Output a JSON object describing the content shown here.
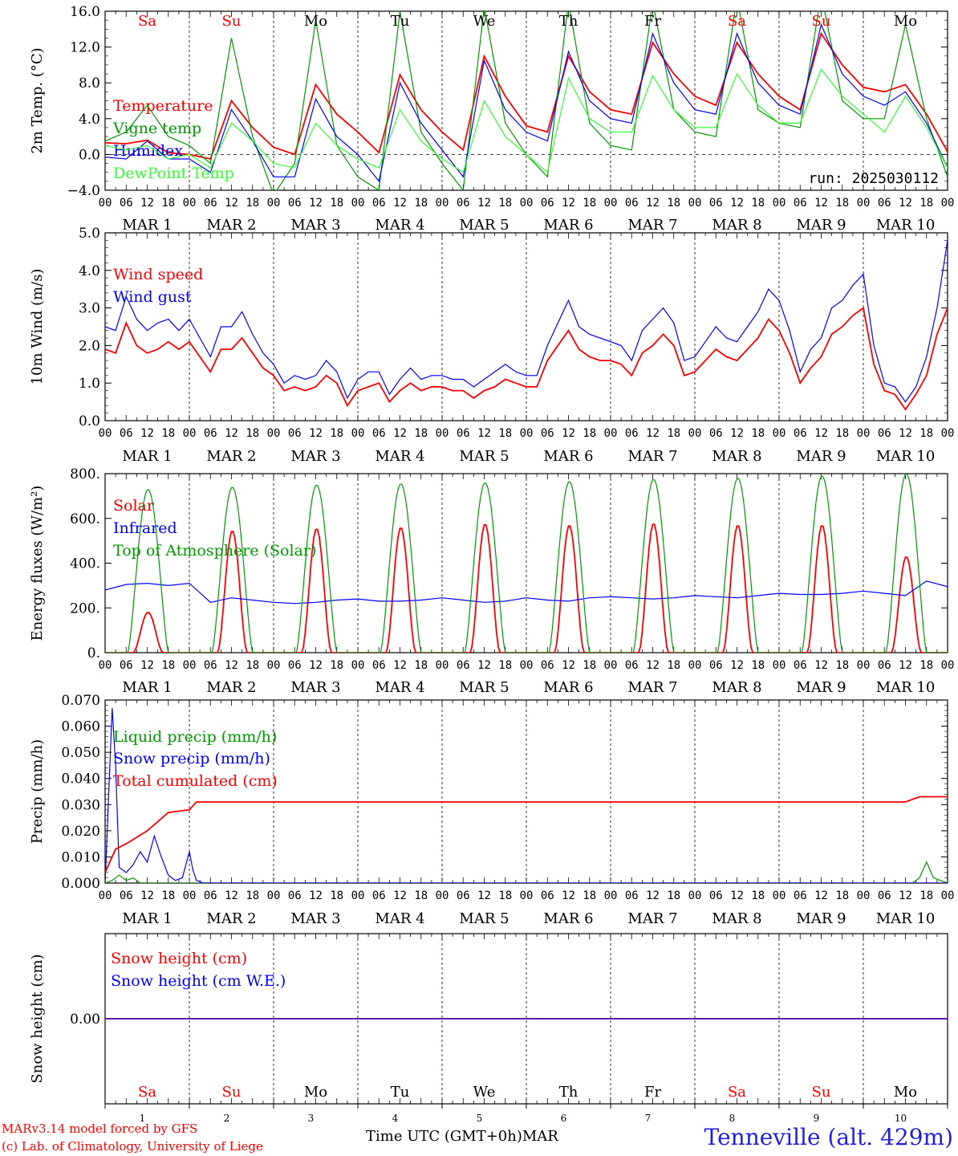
{
  "days": [
    "Sa",
    "Su",
    "Mo",
    "Tu",
    "We",
    "Th",
    "Fr",
    "Sa",
    "Su",
    "Mo"
  ],
  "weekend_flags": [
    true,
    true,
    false,
    false,
    false,
    false,
    false,
    true,
    true,
    false
  ],
  "hour_labels": [
    "00",
    "06",
    "12",
    "18"
  ],
  "month_labels": [
    "MAR  1",
    "MAR  2",
    "MAR  3",
    "MAR  4",
    "MAR  5",
    "MAR  6",
    "MAR  7",
    "MAR  8",
    "MAR  9",
    "MAR 10"
  ],
  "day_numbers": [
    "1",
    "2",
    "3",
    "4",
    "5",
    "6",
    "7",
    "8",
    "9",
    "10"
  ],
  "colors": {
    "red": "#ff0000",
    "green": "#009900",
    "blue": "#0000ff",
    "light_green": "#33ff33",
    "weekend": "#ff0000",
    "weekday": "#000000"
  },
  "footer": {
    "credit1": "MARv3.14 model forced by GFS",
    "credit2": "(c) Lab. of Climatology, University of Liege",
    "xtitle": "Time UTC (GMT+0h)MAR",
    "station": "Tenneville (alt. 429m)"
  },
  "chart_data": [
    {
      "type": "line",
      "ylabel": "2m Temp. (°C)",
      "ylim": [
        -4,
        16
      ],
      "yticks": [
        "16.0",
        "12.0",
        "8.0",
        "4.0",
        "0.0",
        "−4.0"
      ],
      "ytick_values": [
        16,
        12,
        8,
        4,
        0,
        -4
      ],
      "annotation": "run: 2025030112",
      "zero_line": true,
      "x_unit": "hours since MAR 1 00 UTC",
      "series": [
        {
          "name": "Temperature",
          "color": "red",
          "x": [
            0,
            6,
            12,
            18,
            24,
            30,
            36,
            42,
            48,
            54,
            60,
            66,
            72,
            78,
            84,
            90,
            96,
            102,
            108,
            114,
            120,
            126,
            132,
            138,
            144,
            150,
            156,
            162,
            168,
            174,
            180,
            186,
            192,
            198,
            204,
            210,
            216,
            222,
            228,
            234,
            240
          ],
          "y": [
            1.3,
            1.2,
            1.6,
            0.2,
            0.0,
            -0.5,
            6.0,
            3.0,
            0.8,
            0.0,
            7.8,
            4.5,
            2.5,
            0.2,
            8.9,
            5.0,
            2.5,
            0.5,
            11.0,
            6.5,
            3.2,
            2.5,
            11.0,
            7.0,
            5.0,
            4.5,
            12.5,
            9.0,
            6.5,
            5.5,
            12.5,
            9.0,
            6.5,
            5.0,
            13.5,
            10.0,
            7.5,
            7.0,
            7.8,
            4.5,
            0.3
          ]
        },
        {
          "name": "Vigne temp",
          "color": "green",
          "x": [
            0,
            6,
            12,
            18,
            24,
            30,
            36,
            42,
            48,
            54,
            60,
            66,
            72,
            78,
            84,
            90,
            96,
            102,
            108,
            114,
            120,
            126,
            132,
            138,
            144,
            150,
            156,
            162,
            168,
            174,
            180,
            186,
            192,
            198,
            204,
            210,
            216,
            222,
            228,
            234,
            240
          ],
          "y": [
            1.5,
            2.5,
            5.5,
            2.0,
            1.0,
            -1.0,
            13.0,
            2.0,
            -4.5,
            -1.0,
            15.0,
            1.0,
            -2.5,
            -4.0,
            16.0,
            2.5,
            -1.0,
            -4.0,
            16.5,
            3.5,
            0.0,
            -2.5,
            17.0,
            3.5,
            1.0,
            0.5,
            17.0,
            5.0,
            2.5,
            2.0,
            17.5,
            5.0,
            3.5,
            3.0,
            18.0,
            6.0,
            4.0,
            4.0,
            14.5,
            4.0,
            -2.5
          ]
        },
        {
          "name": "Humidex",
          "color": "blue",
          "x": [
            0,
            6,
            12,
            18,
            24,
            30,
            36,
            42,
            48,
            54,
            60,
            66,
            72,
            78,
            84,
            90,
            96,
            102,
            108,
            114,
            120,
            126,
            132,
            138,
            144,
            150,
            156,
            162,
            168,
            174,
            180,
            186,
            192,
            198,
            204,
            210,
            216,
            222,
            228,
            234,
            240
          ],
          "y": [
            -0.3,
            -0.5,
            1.5,
            -0.5,
            -0.5,
            -2.0,
            5.0,
            1.5,
            -2.5,
            -2.5,
            6.2,
            2.0,
            0.0,
            -3.0,
            8.0,
            3.5,
            0.5,
            -2.5,
            10.5,
            5.0,
            2.5,
            1.5,
            11.5,
            6.0,
            4.0,
            3.5,
            13.5,
            8.0,
            5.0,
            4.5,
            13.5,
            8.0,
            5.5,
            4.5,
            14.5,
            9.0,
            6.5,
            5.5,
            7.0,
            3.5,
            -1.5
          ]
        },
        {
          "name": "DewPoint Temp",
          "color": "light_green",
          "x": [
            0,
            6,
            12,
            18,
            24,
            30,
            36,
            42,
            48,
            54,
            60,
            66,
            72,
            78,
            84,
            90,
            96,
            102,
            108,
            114,
            120,
            126,
            132,
            138,
            144,
            150,
            156,
            162,
            168,
            174,
            180,
            186,
            192,
            198,
            204,
            210,
            216,
            222,
            228,
            234,
            240
          ],
          "y": [
            1.0,
            0.5,
            1.0,
            -0.5,
            0.0,
            -1.5,
            3.5,
            1.5,
            -1.0,
            -1.5,
            3.5,
            1.0,
            -0.5,
            -1.5,
            5.0,
            1.5,
            -0.5,
            -2.0,
            6.0,
            2.0,
            0.0,
            -2.0,
            8.5,
            4.0,
            2.5,
            2.5,
            8.8,
            5.0,
            3.0,
            3.0,
            9.0,
            5.5,
            3.5,
            3.5,
            9.5,
            6.5,
            4.5,
            2.5,
            6.5,
            3.0,
            -1.5
          ]
        }
      ]
    },
    {
      "type": "line",
      "ylabel": "10m Wind (m/s)",
      "ylim": [
        0,
        5
      ],
      "yticks": [
        "5.0",
        "4.0",
        "3.0",
        "2.0",
        "1.0",
        "0.0"
      ],
      "ytick_values": [
        5,
        4,
        3,
        2,
        1,
        0
      ],
      "x_unit": "hours since MAR 1 00 UTC",
      "series": [
        {
          "name": "Wind speed",
          "color": "red",
          "x": [
            0,
            3,
            6,
            9,
            12,
            15,
            18,
            21,
            24,
            27,
            30,
            33,
            36,
            39,
            42,
            45,
            48,
            51,
            54,
            57,
            60,
            63,
            66,
            69,
            72,
            75,
            78,
            81,
            84,
            87,
            90,
            93,
            96,
            99,
            102,
            105,
            108,
            111,
            114,
            117,
            120,
            123,
            126,
            129,
            132,
            135,
            138,
            141,
            144,
            147,
            150,
            153,
            156,
            159,
            162,
            165,
            168,
            171,
            174,
            177,
            180,
            183,
            186,
            189,
            192,
            195,
            198,
            201,
            204,
            207,
            210,
            213,
            216,
            219,
            222,
            225,
            228,
            231,
            234,
            237,
            240
          ],
          "y": [
            1.9,
            1.8,
            2.6,
            2.0,
            1.8,
            1.9,
            2.1,
            1.9,
            2.1,
            1.7,
            1.3,
            1.9,
            1.9,
            2.2,
            1.8,
            1.4,
            1.2,
            0.8,
            0.9,
            0.8,
            0.9,
            1.2,
            1.0,
            0.4,
            0.8,
            0.9,
            1.0,
            0.5,
            0.8,
            1.0,
            0.8,
            0.9,
            0.9,
            0.8,
            0.8,
            0.6,
            0.8,
            0.9,
            1.1,
            1.0,
            0.9,
            0.9,
            1.6,
            2.0,
            2.4,
            1.9,
            1.7,
            1.6,
            1.6,
            1.5,
            1.2,
            1.8,
            2.0,
            2.3,
            2.0,
            1.2,
            1.3,
            1.6,
            1.9,
            1.7,
            1.6,
            1.9,
            2.2,
            2.7,
            2.4,
            1.8,
            1.0,
            1.4,
            1.7,
            2.3,
            2.5,
            2.8,
            3.0,
            1.5,
            0.8,
            0.7,
            0.3,
            0.7,
            1.2,
            2.3,
            3.0
          ]
        },
        {
          "name": "Wind gust",
          "color": "blue",
          "x": [
            0,
            3,
            6,
            9,
            12,
            15,
            18,
            21,
            24,
            27,
            30,
            33,
            36,
            39,
            42,
            45,
            48,
            51,
            54,
            57,
            60,
            63,
            66,
            69,
            72,
            75,
            78,
            81,
            84,
            87,
            90,
            93,
            96,
            99,
            102,
            105,
            108,
            111,
            114,
            117,
            120,
            123,
            126,
            129,
            132,
            135,
            138,
            141,
            144,
            147,
            150,
            153,
            156,
            159,
            162,
            165,
            168,
            171,
            174,
            177,
            180,
            183,
            186,
            189,
            192,
            195,
            198,
            201,
            204,
            207,
            210,
            213,
            216,
            219,
            222,
            225,
            228,
            231,
            234,
            237,
            240
          ],
          "y": [
            2.5,
            2.4,
            3.3,
            2.7,
            2.4,
            2.6,
            2.7,
            2.4,
            2.7,
            2.2,
            1.7,
            2.5,
            2.5,
            2.9,
            2.3,
            1.8,
            1.5,
            1.0,
            1.2,
            1.1,
            1.2,
            1.6,
            1.3,
            0.6,
            1.1,
            1.3,
            1.3,
            0.7,
            1.1,
            1.4,
            1.1,
            1.2,
            1.2,
            1.1,
            1.1,
            0.9,
            1.1,
            1.3,
            1.5,
            1.3,
            1.2,
            1.2,
            2.0,
            2.6,
            3.2,
            2.5,
            2.3,
            2.2,
            2.1,
            2.0,
            1.6,
            2.4,
            2.7,
            3.0,
            2.6,
            1.6,
            1.7,
            2.1,
            2.5,
            2.2,
            2.1,
            2.5,
            2.9,
            3.5,
            3.2,
            2.4,
            1.3,
            1.9,
            2.2,
            3.0,
            3.2,
            3.6,
            3.9,
            2.0,
            1.0,
            0.9,
            0.5,
            0.9,
            1.7,
            3.0,
            4.8
          ]
        }
      ]
    },
    {
      "type": "line",
      "ylabel": "Energy fluxes (W/m²)",
      "ylim": [
        0,
        800
      ],
      "yticks": [
        "800.",
        "600.",
        "400.",
        "200.",
        "0."
      ],
      "ytick_values": [
        800,
        600,
        400,
        200,
        0
      ],
      "x_unit": "hours since MAR 1 00 UTC",
      "series": [
        {
          "name": "Solar",
          "color": "red",
          "day_peaks": [
            180,
            545,
            555,
            560,
            575,
            570,
            578,
            570,
            570,
            430
          ]
        },
        {
          "name": "Infrared",
          "color": "blue",
          "x": [
            0,
            6,
            12,
            18,
            24,
            30,
            36,
            42,
            48,
            54,
            60,
            66,
            72,
            78,
            84,
            90,
            96,
            102,
            108,
            114,
            120,
            126,
            132,
            138,
            144,
            150,
            156,
            162,
            168,
            174,
            180,
            186,
            192,
            198,
            204,
            210,
            216,
            222,
            228,
            234,
            240
          ],
          "y": [
            280,
            305,
            310,
            300,
            310,
            225,
            245,
            235,
            225,
            220,
            225,
            235,
            240,
            230,
            230,
            235,
            245,
            235,
            225,
            230,
            245,
            235,
            230,
            245,
            250,
            245,
            240,
            245,
            255,
            250,
            245,
            255,
            265,
            260,
            260,
            265,
            275,
            265,
            255,
            320,
            295
          ]
        },
        {
          "name": "Top of Atmosphere (Solar)",
          "color": "green",
          "day_peaks": [
            730,
            740,
            750,
            755,
            760,
            765,
            775,
            780,
            790,
            800
          ]
        }
      ]
    },
    {
      "type": "line",
      "ylabel": "Precip (mm/h)",
      "ylim": [
        0,
        0.07
      ],
      "yticks": [
        "0.070",
        "0.060",
        "0.050",
        "0.040",
        "0.030",
        "0.020",
        "0.010",
        "0.000"
      ],
      "ytick_values": [
        0.07,
        0.06,
        0.05,
        0.04,
        0.03,
        0.02,
        0.01,
        0
      ],
      "x_unit": "hours since MAR 1 00 UTC",
      "series": [
        {
          "name": "Liquid precip (mm/h)",
          "color": "green",
          "x": [
            0,
            2,
            4,
            6,
            8,
            10,
            230,
            232,
            234,
            236,
            240
          ],
          "y": [
            0,
            0.001,
            0.003,
            0.001,
            0.002,
            0,
            0,
            0.002,
            0.008,
            0.002,
            0
          ]
        },
        {
          "name": "Snow precip (mm/h)",
          "color": "blue",
          "x": [
            0,
            2,
            3,
            4,
            6,
            8,
            10,
            12,
            14,
            16,
            18,
            20,
            22,
            24,
            25,
            26,
            28,
            240
          ],
          "y": [
            0,
            0.067,
            0.045,
            0.006,
            0.004,
            0.007,
            0.012,
            0.008,
            0.018,
            0.01,
            0.003,
            0.001,
            0.002,
            0.012,
            0.005,
            0.001,
            0,
            0
          ]
        },
        {
          "name": "Total cumulated (cm)",
          "color": "red",
          "x": [
            0,
            3,
            6,
            12,
            18,
            24,
            26,
            30,
            36,
            48,
            60,
            72,
            96,
            120,
            144,
            168,
            192,
            216,
            228,
            232,
            240
          ],
          "y": [
            0.004,
            0.013,
            0.015,
            0.02,
            0.027,
            0.028,
            0.031,
            0.031,
            0.031,
            0.031,
            0.031,
            0.031,
            0.031,
            0.031,
            0.031,
            0.031,
            0.031,
            0.031,
            0.031,
            0.033,
            0.033
          ]
        }
      ]
    },
    {
      "type": "line",
      "ylabel": "Snow height (cm)",
      "ylim": [
        -1,
        1
      ],
      "yticks": [
        "0.00"
      ],
      "ytick_values": [
        0
      ],
      "x_unit": "hours since MAR 1 00 UTC",
      "series": [
        {
          "name": "Snow height (cm)",
          "color": "red",
          "x": [
            0,
            240
          ],
          "y": [
            0,
            0
          ]
        },
        {
          "name": "Snow height (cm W.E.)",
          "color": "blue",
          "x": [
            0,
            240
          ],
          "y": [
            0,
            0
          ]
        }
      ]
    }
  ]
}
